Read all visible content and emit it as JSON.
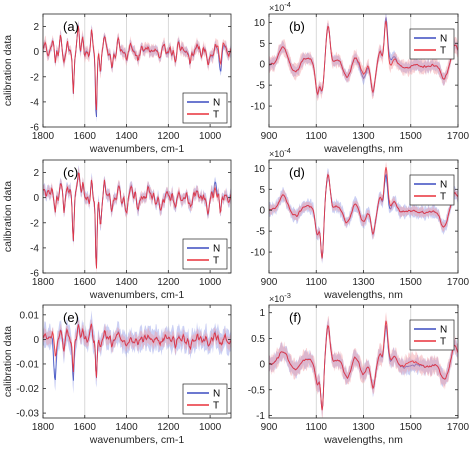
{
  "colors": {
    "N": "#3b4cc0",
    "T": "#e8303a",
    "N_band": "#8c96e6",
    "T_band": "#f29aa0",
    "grid": "#d0d0d0",
    "axis": "#262626"
  },
  "chart_data": [
    {
      "type": "line",
      "panel": "(a)",
      "domain": "ir",
      "xlabel": "wavenumbers, cm-1",
      "ylabel": "calibration data",
      "xlim": [
        1800,
        900
      ],
      "x_reversed": true,
      "ylim": [
        -6,
        3
      ],
      "xticks": [
        1800,
        1600,
        1400,
        1200,
        1000
      ],
      "xtick_labels": [
        "1800",
        "1600",
        "1400",
        "1200",
        "1000"
      ],
      "yticks": [
        -6,
        -4,
        -2,
        0,
        2
      ],
      "ytick_labels": [
        "-6",
        "-4",
        "-2",
        "0",
        "2"
      ],
      "yscale_label": "",
      "legend": [
        "N",
        "T"
      ],
      "legend_position": "lower-right",
      "grid_x": true,
      "scale": 1,
      "noise": 0.6,
      "features": [
        [
          1790,
          0.6,
          8
        ],
        [
          1755,
          0.9,
          6
        ],
        [
          1740,
          -0.8,
          5
        ],
        [
          1715,
          1.1,
          6
        ],
        [
          1700,
          -1.2,
          5
        ],
        [
          1683,
          0.9,
          5
        ],
        [
          1655,
          -3.3,
          5
        ],
        [
          1630,
          2.0,
          6
        ],
        [
          1610,
          1.0,
          6
        ],
        [
          1568,
          1.6,
          6
        ],
        [
          1545,
          -5.5,
          5
        ],
        [
          1525,
          -1.7,
          6
        ],
        [
          1505,
          1.3,
          6
        ],
        [
          1470,
          -1.1,
          6
        ],
        [
          1440,
          0.9,
          7
        ],
        [
          1400,
          -0.8,
          7
        ],
        [
          1380,
          0.6,
          6
        ],
        [
          1345,
          -0.6,
          7
        ],
        [
          1300,
          0.5,
          8
        ],
        [
          1240,
          -0.7,
          8
        ],
        [
          1200,
          0.4,
          8
        ],
        [
          1165,
          -0.9,
          6
        ],
        [
          1150,
          0.5,
          6
        ],
        [
          1095,
          -0.9,
          8
        ],
        [
          1060,
          0.6,
          8
        ],
        [
          1010,
          -0.9,
          7
        ],
        [
          975,
          0.5,
          7
        ],
        [
          950,
          -1.8,
          6
        ],
        [
          930,
          0.5,
          6
        ],
        [
          910,
          -0.3,
          6
        ]
      ],
      "series": [
        {
          "name": "N",
          "offset": [],
          "band_width": 0.35
        },
        {
          "name": "T",
          "offset": [
            [
              950,
              0.6,
              15
            ],
            [
              1545,
              0.5,
              8
            ]
          ],
          "band_width": 0.45
        }
      ]
    },
    {
      "type": "line",
      "panel": "(b)",
      "domain": "nir",
      "xlabel": "wavelengths, nm",
      "ylabel": "",
      "xlim": [
        900,
        1700
      ],
      "x_reversed": false,
      "ylim": [
        -15,
        12
      ],
      "xticks": [
        900,
        1100,
        1300,
        1500,
        1700
      ],
      "xtick_labels": [
        "900",
        "1100",
        "1300",
        "1500",
        "1700"
      ],
      "yticks": [
        -10,
        -5,
        0,
        5,
        10
      ],
      "ytick_labels": [
        "-10",
        "-5",
        "0",
        "5",
        "10"
      ],
      "yscale_label": "×10",
      "yscale_exp": "-4",
      "legend": [
        "N",
        "T"
      ],
      "legend_position": "top-right",
      "grid_x": true,
      "scale": 1,
      "noise": 0.4,
      "features": [
        [
          960,
          4.0,
          25
        ],
        [
          1010,
          -2.0,
          25
        ],
        [
          1060,
          1.5,
          30
        ],
        [
          1105,
          -7.0,
          12
        ],
        [
          1125,
          -6.0,
          10
        ],
        [
          1150,
          9.0,
          12
        ],
        [
          1190,
          1.0,
          20
        ],
        [
          1230,
          -3.0,
          20
        ],
        [
          1265,
          1.5,
          15
        ],
        [
          1300,
          -3.5,
          15
        ],
        [
          1340,
          -6.5,
          12
        ],
        [
          1370,
          3.0,
          10
        ],
        [
          1395,
          11.0,
          10
        ],
        [
          1430,
          2.0,
          15
        ],
        [
          1475,
          -1.0,
          25
        ],
        [
          1560,
          -0.5,
          40
        ],
        [
          1640,
          -3.5,
          20
        ],
        [
          1685,
          4.5,
          15
        ],
        [
          1700,
          1.5,
          10
        ]
      ],
      "series": [
        {
          "name": "N",
          "offset": [],
          "band_width": 1.2
        },
        {
          "name": "T",
          "offset": [
            [
              1410,
              -1.5,
              20
            ],
            [
              1300,
              1.0,
              20
            ]
          ],
          "band_width": 1.6
        }
      ]
    },
    {
      "type": "line",
      "panel": "(c)",
      "domain": "ir",
      "xlabel": "wavenumbers, cm-1",
      "ylabel": "calibration data",
      "xlim": [
        1800,
        900
      ],
      "x_reversed": true,
      "ylim": [
        -6,
        3
      ],
      "xticks": [
        1800,
        1600,
        1400,
        1200,
        1000
      ],
      "xtick_labels": [
        "1800",
        "1600",
        "1400",
        "1200",
        "1000"
      ],
      "yticks": [
        -6,
        -4,
        -2,
        0,
        2
      ],
      "ytick_labels": [
        "-6",
        "-4",
        "-2",
        "0",
        "2"
      ],
      "yscale_label": "",
      "legend": [
        "N",
        "T"
      ],
      "legend_position": "lower-right",
      "grid_x": true,
      "scale": 1,
      "noise": 0.7,
      "features": [
        [
          1790,
          0.6,
          8
        ],
        [
          1755,
          1.0,
          6
        ],
        [
          1740,
          -0.9,
          5
        ],
        [
          1715,
          1.2,
          6
        ],
        [
          1700,
          -1.4,
          5
        ],
        [
          1683,
          1.0,
          5
        ],
        [
          1655,
          -3.6,
          5
        ],
        [
          1630,
          2.1,
          6
        ],
        [
          1610,
          1.1,
          6
        ],
        [
          1568,
          1.7,
          6
        ],
        [
          1545,
          -5.5,
          5
        ],
        [
          1525,
          -1.8,
          6
        ],
        [
          1505,
          1.4,
          6
        ],
        [
          1470,
          -1.2,
          6
        ],
        [
          1440,
          1.0,
          7
        ],
        [
          1400,
          -0.9,
          7
        ],
        [
          1380,
          0.7,
          6
        ],
        [
          1345,
          -0.7,
          7
        ],
        [
          1300,
          0.6,
          8
        ],
        [
          1240,
          -0.8,
          8
        ],
        [
          1200,
          0.5,
          8
        ],
        [
          1165,
          -1.0,
          6
        ],
        [
          1150,
          0.6,
          6
        ],
        [
          1095,
          -1.0,
          8
        ],
        [
          1060,
          0.7,
          8
        ],
        [
          1010,
          -1.0,
          7
        ],
        [
          975,
          0.9,
          7
        ],
        [
          950,
          -1.2,
          6
        ],
        [
          930,
          0.6,
          6
        ],
        [
          910,
          -0.2,
          6
        ]
      ],
      "series": [
        {
          "name": "N",
          "offset": [
            [
              975,
              0.5,
              10
            ]
          ],
          "band_width": 0.45
        },
        {
          "name": "T",
          "offset": [],
          "band_width": 0.4
        }
      ]
    },
    {
      "type": "line",
      "panel": "(d)",
      "domain": "nir",
      "xlabel": "wavelengths, nm",
      "ylabel": "",
      "xlim": [
        900,
        1700
      ],
      "x_reversed": false,
      "ylim": [
        -15,
        12
      ],
      "xticks": [
        900,
        1100,
        1300,
        1500,
        1700
      ],
      "xtick_labels": [
        "900",
        "1100",
        "1300",
        "1500",
        "1700"
      ],
      "yticks": [
        -10,
        -5,
        0,
        5,
        10
      ],
      "ytick_labels": [
        "-10",
        "-5",
        "0",
        "5",
        "10"
      ],
      "yscale_label": "×10",
      "yscale_exp": "-4",
      "legend": [
        "N",
        "T"
      ],
      "legend_position": "top-right",
      "grid_x": true,
      "scale": 1,
      "noise": 0.4,
      "features": [
        [
          960,
          3.5,
          25
        ],
        [
          1010,
          -1.5,
          25
        ],
        [
          1060,
          1.0,
          30
        ],
        [
          1105,
          -6.0,
          12
        ],
        [
          1125,
          -11.5,
          8
        ],
        [
          1150,
          8.5,
          12
        ],
        [
          1190,
          1.0,
          20
        ],
        [
          1230,
          -3.0,
          20
        ],
        [
          1265,
          1.5,
          15
        ],
        [
          1300,
          -3.0,
          15
        ],
        [
          1340,
          -5.5,
          12
        ],
        [
          1370,
          3.0,
          10
        ],
        [
          1395,
          9.5,
          10
        ],
        [
          1430,
          2.0,
          15
        ],
        [
          1475,
          -0.5,
          25
        ],
        [
          1560,
          -0.5,
          40
        ],
        [
          1640,
          -4.0,
          20
        ],
        [
          1685,
          4.0,
          15
        ],
        [
          1700,
          1.5,
          10
        ]
      ],
      "series": [
        {
          "name": "N",
          "offset": [
            [
              1400,
              -1.0,
              15
            ]
          ],
          "band_width": 1.4
        },
        {
          "name": "T",
          "offset": [
            [
              1400,
              1.0,
              15
            ]
          ],
          "band_width": 1.0
        }
      ]
    },
    {
      "type": "line",
      "panel": "(e)",
      "domain": "ir",
      "xlabel": "wavenumbers, cm-1",
      "ylabel": "calibration data",
      "xlim": [
        1800,
        900
      ],
      "x_reversed": true,
      "ylim": [
        -0.032,
        0.014
      ],
      "xticks": [
        1800,
        1600,
        1400,
        1200,
        1000
      ],
      "xtick_labels": [
        "1800",
        "1600",
        "1400",
        "1200",
        "1000"
      ],
      "yticks": [
        -0.03,
        -0.02,
        -0.01,
        0,
        0.01
      ],
      "ytick_labels": [
        "-0.03",
        "-0.02",
        "-0.01",
        "0",
        "0.01"
      ],
      "yscale_label": "",
      "legend": [
        "N",
        "T"
      ],
      "legend_position": "lower-right",
      "grid_x": true,
      "scale": 0.004,
      "noise": 0.6,
      "features": [
        [
          1790,
          0.5,
          8
        ],
        [
          1755,
          0.7,
          6
        ],
        [
          1740,
          -2.0,
          5
        ],
        [
          1715,
          0.9,
          6
        ],
        [
          1700,
          -1.0,
          5
        ],
        [
          1683,
          0.8,
          5
        ],
        [
          1655,
          -3.0,
          5
        ],
        [
          1630,
          1.5,
          6
        ],
        [
          1610,
          0.8,
          6
        ],
        [
          1568,
          1.2,
          6
        ],
        [
          1545,
          -4.0,
          5
        ],
        [
          1525,
          -1.3,
          6
        ],
        [
          1505,
          1.0,
          6
        ],
        [
          1470,
          -0.8,
          6
        ],
        [
          1440,
          0.6,
          7
        ],
        [
          1400,
          -0.6,
          7
        ],
        [
          1380,
          0.4,
          6
        ],
        [
          1345,
          -0.4,
          7
        ],
        [
          1300,
          0.3,
          8
        ],
        [
          1240,
          -0.4,
          8
        ],
        [
          1200,
          0.3,
          8
        ],
        [
          1165,
          -0.5,
          6
        ],
        [
          1150,
          0.3,
          6
        ],
        [
          1095,
          -0.5,
          8
        ],
        [
          1060,
          0.3,
          8
        ],
        [
          1010,
          -0.4,
          7
        ],
        [
          975,
          0.3,
          7
        ],
        [
          950,
          -0.5,
          6
        ],
        [
          930,
          0.3,
          6
        ],
        [
          910,
          -0.2,
          6
        ]
      ],
      "series": [
        {
          "name": "N",
          "offset": [
            [
              1745,
              -3.0,
              8
            ],
            [
              1655,
              -1.0,
              8
            ]
          ],
          "band_width": 1.0
        },
        {
          "name": "T",
          "offset": [],
          "band_width": 0.6
        }
      ]
    },
    {
      "type": "line",
      "panel": "(f)",
      "domain": "nir",
      "xlabel": "wavelengths, nm",
      "ylabel": "",
      "xlim": [
        900,
        1700
      ],
      "x_reversed": false,
      "ylim": [
        -1.05,
        1.15
      ],
      "xticks": [
        900,
        1100,
        1300,
        1500,
        1700
      ],
      "xtick_labels": [
        "900",
        "1100",
        "1300",
        "1500",
        "1700"
      ],
      "yticks": [
        -1,
        -0.5,
        0,
        0.5,
        1
      ],
      "ytick_labels": [
        "-1",
        "-0.5",
        "0",
        "0.5",
        "1"
      ],
      "yscale_label": "×10",
      "yscale_exp": "-3",
      "legend": [
        "N",
        "T"
      ],
      "legend_position": "top-right",
      "grid_x": true,
      "scale": 0.1,
      "noise": 0.4,
      "features": [
        [
          960,
          2.5,
          25
        ],
        [
          1010,
          -1.0,
          25
        ],
        [
          1060,
          1.0,
          30
        ],
        [
          1105,
          -4.0,
          12
        ],
        [
          1125,
          -9.0,
          8
        ],
        [
          1150,
          7.5,
          12
        ],
        [
          1190,
          1.0,
          20
        ],
        [
          1230,
          -2.5,
          20
        ],
        [
          1265,
          1.5,
          15
        ],
        [
          1300,
          -2.0,
          15
        ],
        [
          1340,
          -4.5,
          12
        ],
        [
          1370,
          2.0,
          10
        ],
        [
          1395,
          7.5,
          10
        ],
        [
          1430,
          1.5,
          15
        ],
        [
          1475,
          -0.5,
          25
        ],
        [
          1560,
          -0.5,
          40
        ],
        [
          1640,
          -3.0,
          20
        ],
        [
          1685,
          3.5,
          15
        ],
        [
          1700,
          1.0,
          10
        ]
      ],
      "series": [
        {
          "name": "N",
          "offset": [],
          "band_width": 1.4
        },
        {
          "name": "T",
          "offset": [
            [
              1400,
              1.0,
              15
            ],
            [
              1500,
              0.8,
              30
            ]
          ],
          "band_width": 1.6
        }
      ]
    }
  ]
}
